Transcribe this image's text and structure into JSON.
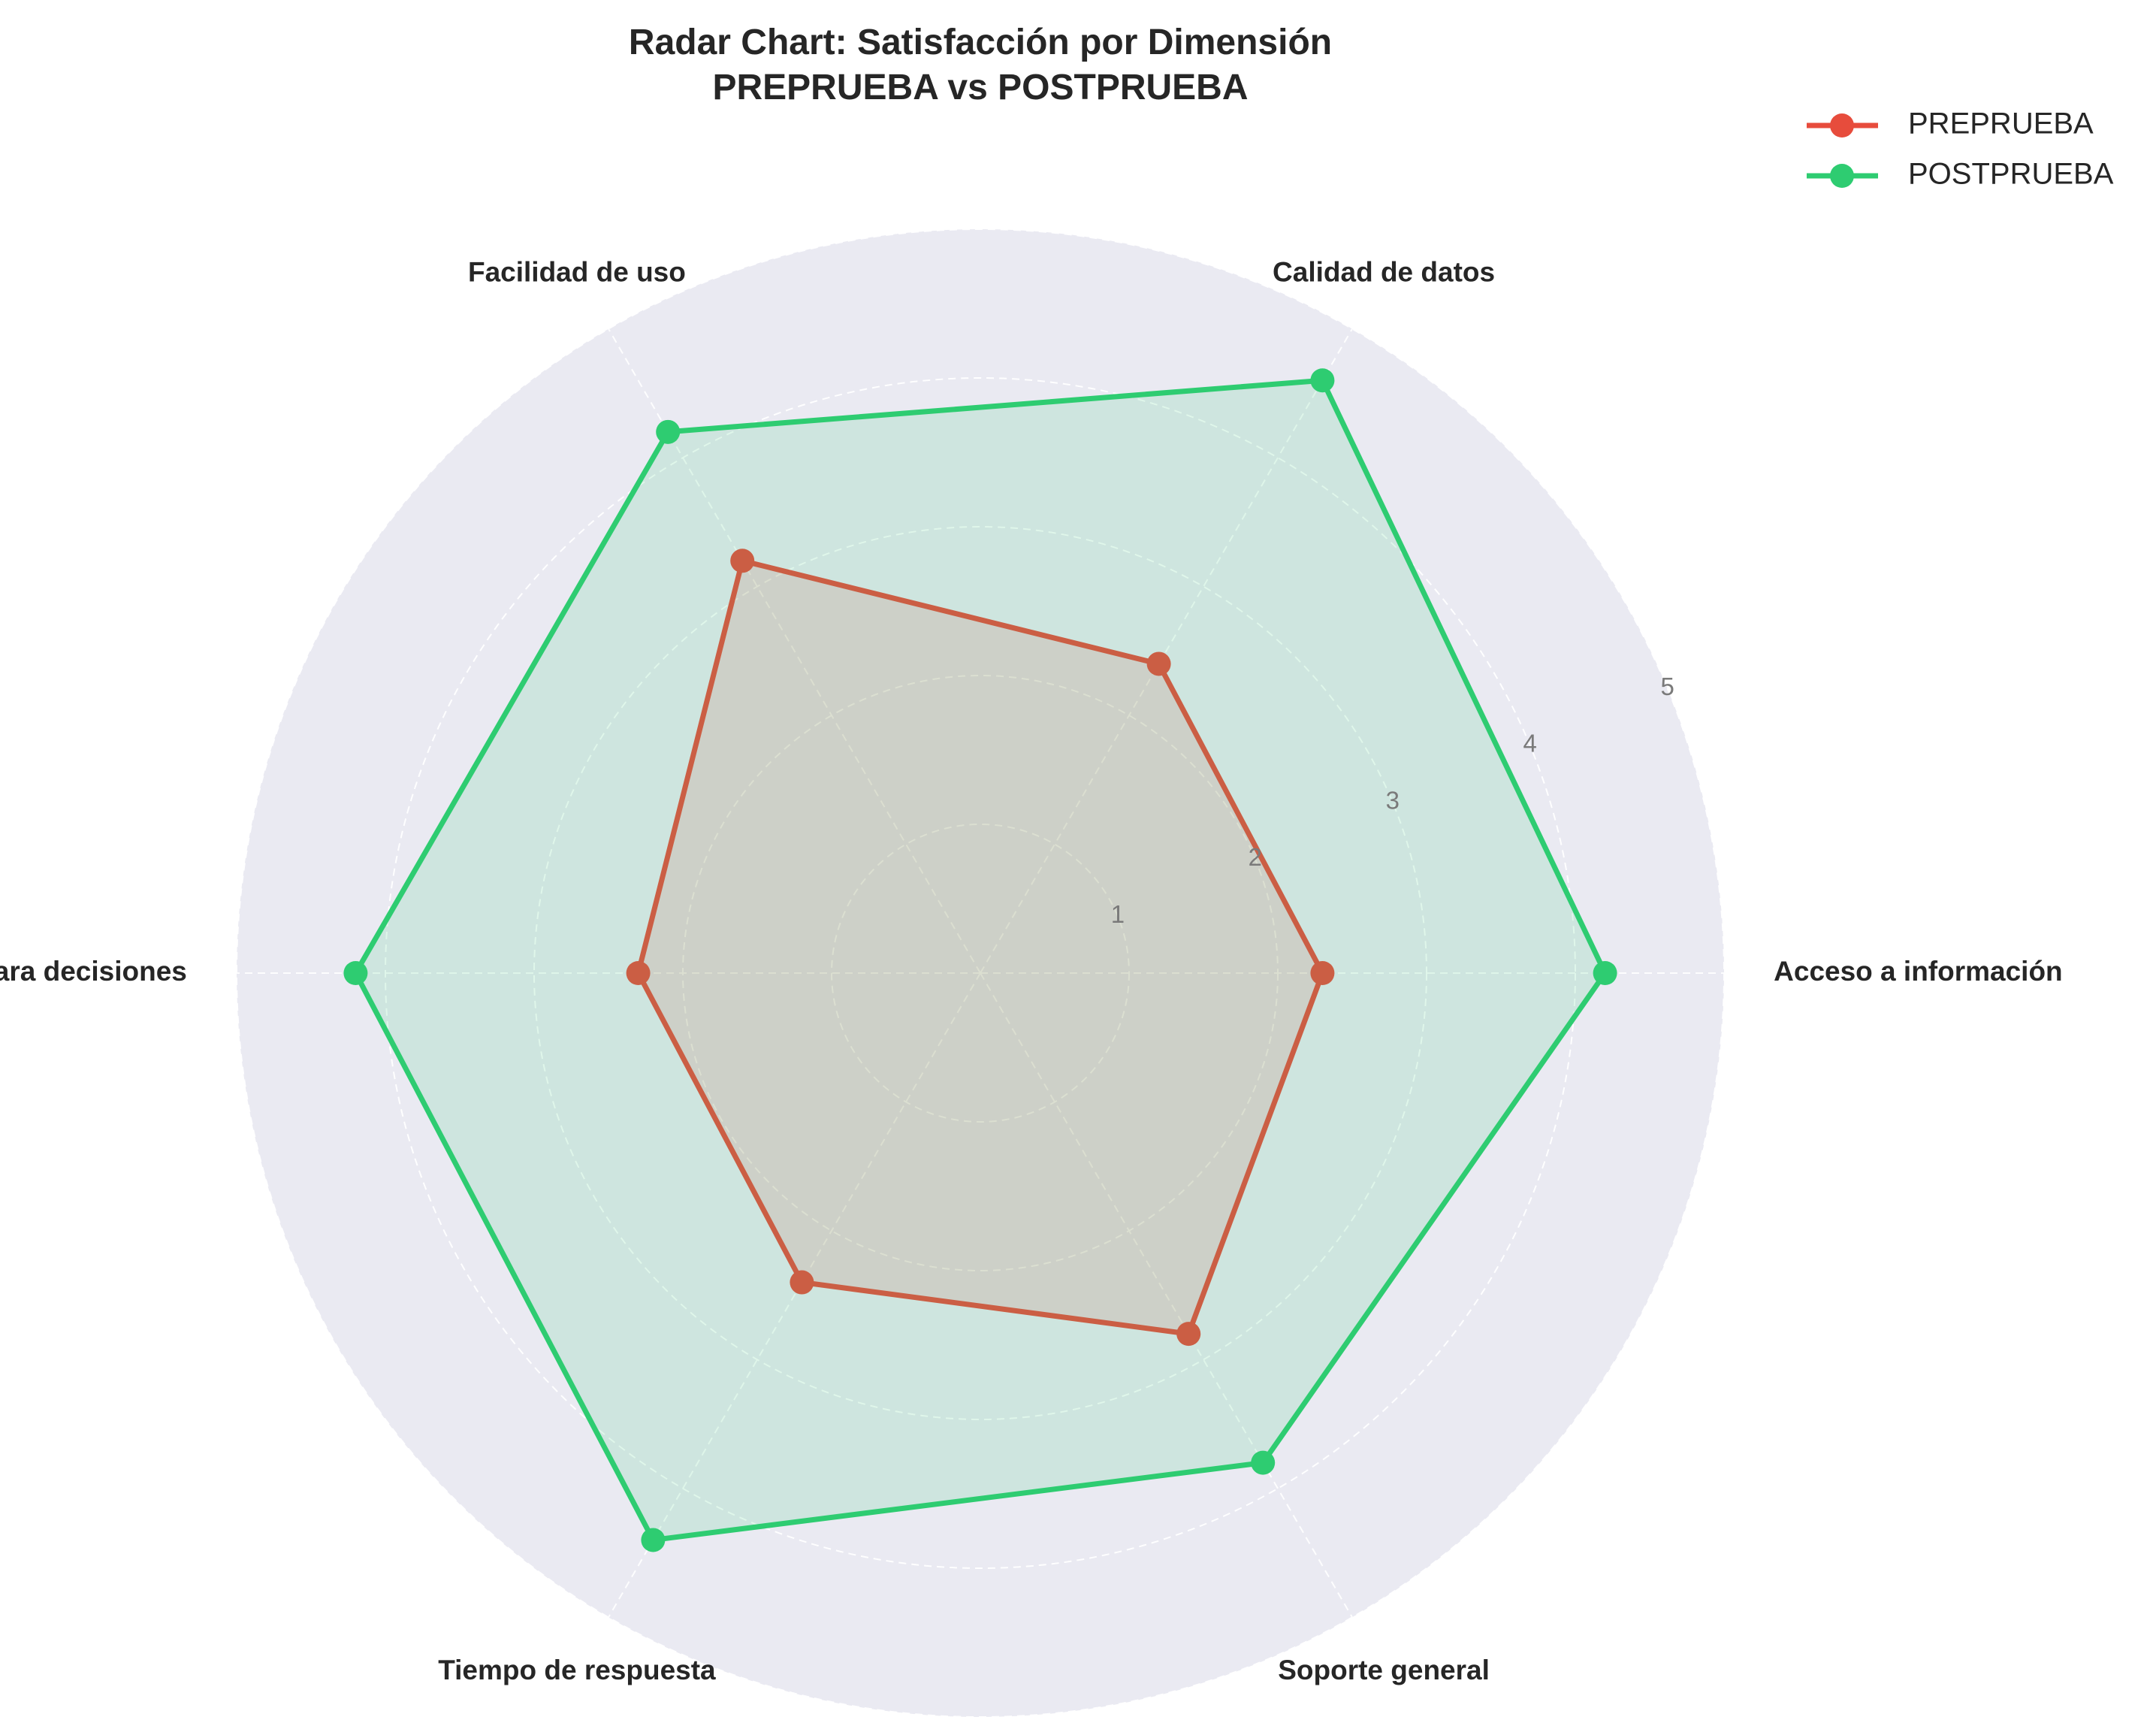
{
  "chart_data": {
    "type": "radar",
    "title_lines": [
      "Radar Chart: Satisfacción por Dimensión",
      "PREPRUEBA vs POSTPRUEBA"
    ],
    "categories": [
      "Acceso a información",
      "Calidad de datos",
      "Facilidad de uso",
      "Utilidad para decisiones",
      "Tiempo de respuesta",
      "Soporte general"
    ],
    "series": [
      {
        "name": "PREPRUEBA",
        "color": "#e74c3c",
        "values": [
          2.3,
          2.4,
          3.2,
          2.3,
          2.4,
          2.8
        ]
      },
      {
        "name": "POSTPRUEBA",
        "color": "#2ecc71",
        "values": [
          4.2,
          4.6,
          4.2,
          4.2,
          4.4,
          3.8
        ]
      }
    ],
    "rlim": [
      0,
      5
    ],
    "rticks": [
      "1",
      "2",
      "3",
      "4",
      "5"
    ],
    "background_color": "#eaeaf2",
    "grid": true,
    "legend_position": "top-right"
  }
}
